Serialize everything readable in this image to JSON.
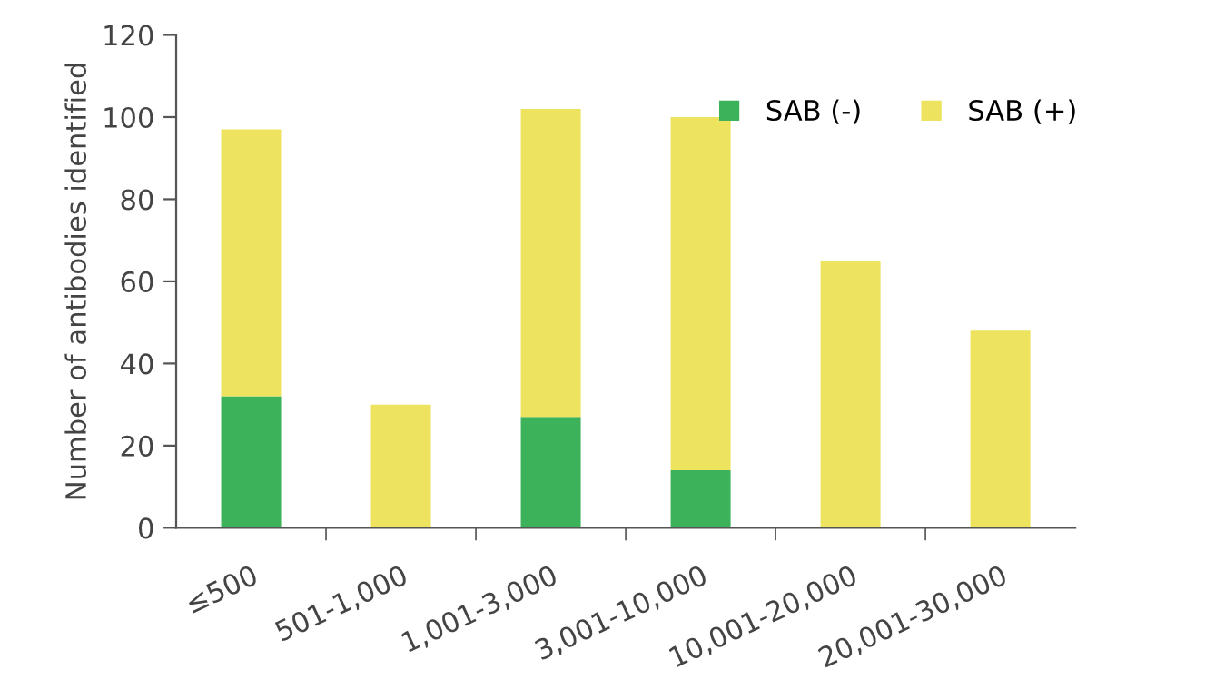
{
  "chart_data": {
    "type": "bar",
    "stacked": true,
    "ylabel": "Number of antibodies identified",
    "categories": [
      "≤500",
      "501-1,000",
      "1,001-3,000",
      "3,001-10,000",
      "10,001-20,000",
      "20,001-30,000"
    ],
    "series": [
      {
        "name": "SAB (-)",
        "color": "#3cb35a",
        "values": [
          32,
          0,
          27,
          14,
          0,
          0
        ]
      },
      {
        "name": "SAB (+)",
        "color": "#ede35e",
        "values": [
          65,
          30,
          75,
          86,
          65,
          48
        ]
      }
    ],
    "ylim": [
      0,
      120
    ],
    "yticks": [
      0,
      20,
      40,
      60,
      80,
      100,
      120
    ],
    "grid": false,
    "legend": "top right"
  }
}
